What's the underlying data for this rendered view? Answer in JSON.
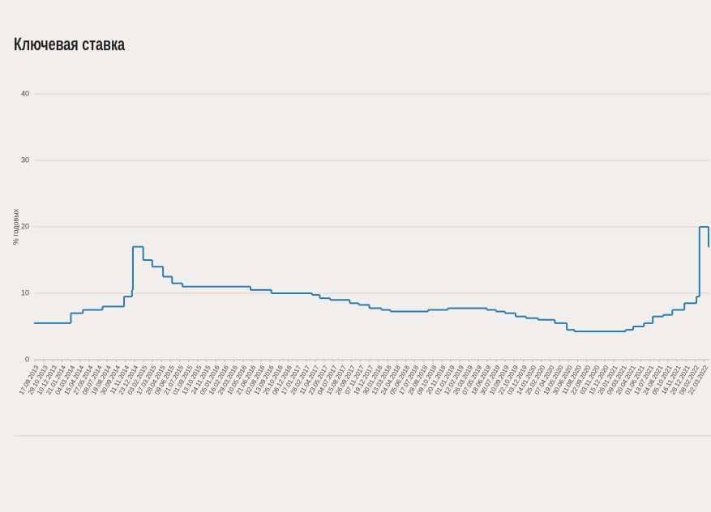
{
  "chart_data": {
    "type": "step-line",
    "title": "Ключевая ставка",
    "y_label": "% годовых",
    "xlim": [
      "13.09.2013",
      "15.04.2022"
    ],
    "xticks": [
      "17.09.2013",
      "29.10.2013",
      "10.12.2013",
      "21.01.2014",
      "04.03.2014",
      "15.04.2014",
      "27.05.2014",
      "08.07.2014",
      "19.08.2014",
      "30.09.2014",
      "11.11.2014",
      "23.12.2014",
      "03.02.2015",
      "17.03.2015",
      "28.04.2015",
      "09.06.2015",
      "21.07.2015",
      "01.09.2015",
      "13.10.2015",
      "24.11.2015",
      "05.01.2016",
      "16.02.2016",
      "29.03.2016",
      "10.05.2016",
      "21.06.2016",
      "02.08.2016",
      "13.09.2016",
      "25.10.2016",
      "06.12.2016",
      "17.01.2017",
      "28.02.2017",
      "11.04.2017",
      "23.05.2017",
      "04.07.2017",
      "15.08.2017",
      "26.09.2017",
      "07.11.2017",
      "19.12.2017",
      "30.01.2018",
      "13.03.2018",
      "24.04.2018",
      "05.06.2018",
      "17.07.2018",
      "28.08.2018",
      "09.10.2018",
      "20.11.2018",
      "01.01.2019",
      "12.02.2019",
      "26.03.2019",
      "07.05.2019",
      "18.06.2019",
      "30.07.2019",
      "10.09.2019",
      "22.10.2019",
      "03.12.2019",
      "14.01.2020",
      "25.02.2020",
      "07.04.2020",
      "19.05.2020",
      "30.06.2020",
      "11.08.2020",
      "22.09.2020",
      "03.11.2020",
      "15.12.2020",
      "26.01.2021",
      "09.03.2021",
      "20.04.2021",
      "01.06.2021",
      "13.07.2021",
      "24.08.2021",
      "05.10.2021",
      "16.11.2021",
      "28.12.2021",
      "08.02.2022",
      "22.03.2022"
    ],
    "ylim": [
      0,
      40
    ],
    "yticks": [
      0,
      10,
      20,
      30,
      40
    ],
    "grid": true,
    "series": [
      {
        "color": "#2b7bb0",
        "x": [
          "13.09.2013",
          "03.03.2014",
          "28.04.2014",
          "28.07.2014",
          "05.11.2014",
          "12.12.2014",
          "16.12.2014",
          "02.02.2015",
          "16.03.2015",
          "05.05.2015",
          "16.06.2015",
          "03.08.2015",
          "14.06.2016",
          "19.09.2016",
          "27.03.2017",
          "02.05.2017",
          "19.06.2017",
          "18.09.2017",
          "30.10.2017",
          "18.12.2017",
          "12.02.2018",
          "26.03.2018",
          "17.09.2018",
          "17.12.2018",
          "17.06.2019",
          "29.07.2019",
          "09.09.2019",
          "28.10.2019",
          "16.12.2019",
          "10.02.2020",
          "27.04.2020",
          "22.06.2020",
          "27.07.2020",
          "22.03.2021",
          "26.04.2021",
          "15.06.2021",
          "26.07.2021",
          "13.09.2021",
          "25.10.2021",
          "20.12.2021",
          "14.02.2022",
          "28.02.2022",
          "11.04.2022"
        ],
        "values": [
          5.5,
          7,
          7.5,
          8,
          9.5,
          10.5,
          17,
          15,
          14,
          12.5,
          11.5,
          11,
          10.5,
          10,
          9.75,
          9.25,
          9,
          8.5,
          8.25,
          7.75,
          7.5,
          7.25,
          7.5,
          7.75,
          7.5,
          7.25,
          7,
          6.5,
          6.25,
          6,
          5.5,
          4.5,
          4.25,
          4.5,
          5,
          5.5,
          6.5,
          6.75,
          7.5,
          8.5,
          9.5,
          20,
          17
        ]
      }
    ]
  }
}
